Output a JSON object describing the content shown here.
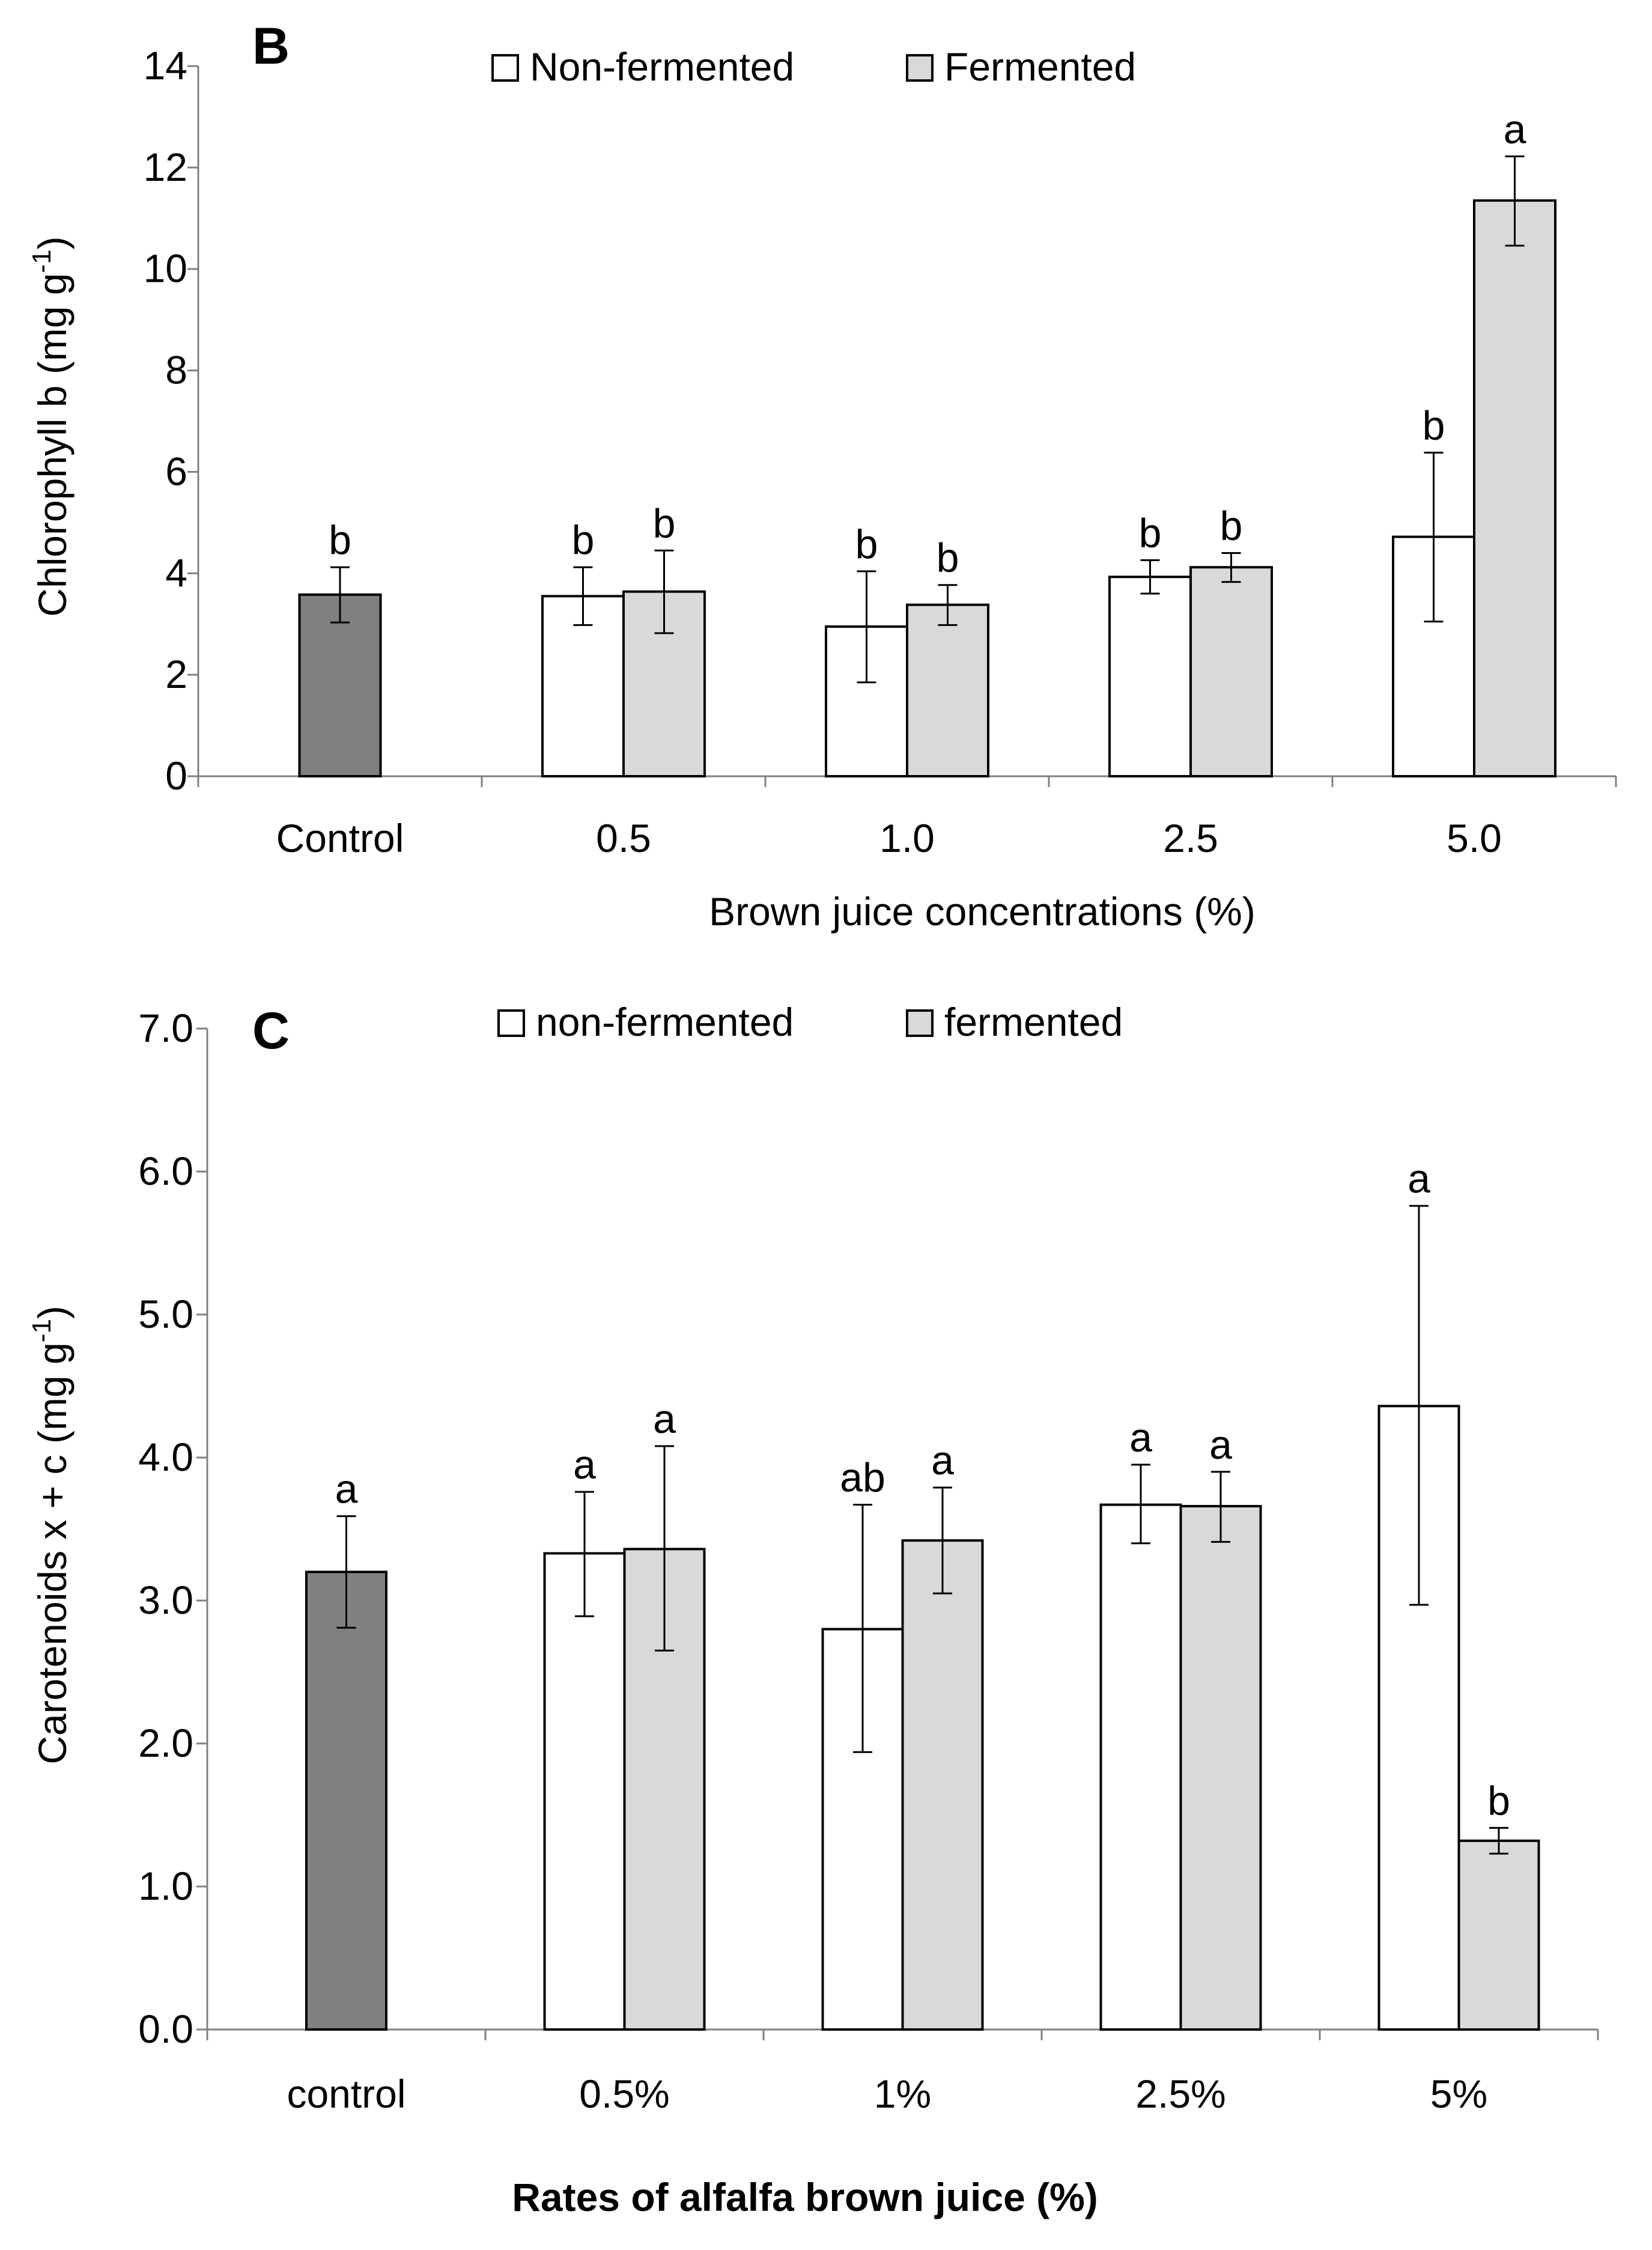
{
  "chart_data": [
    {
      "type": "bar",
      "panel_label": "B",
      "categories": [
        "Control",
        "0.5",
        "1.0",
        "2.5",
        "5.0"
      ],
      "xlabel": "Brown juice concentrations (%)",
      "ylabel_main": "Chlorophyll b (mg g",
      "ylabel_sup": "-1",
      "ylabel_end": ")",
      "ylim": [
        0,
        14
      ],
      "yticks": [
        0,
        2,
        4,
        6,
        8,
        10,
        12,
        14
      ],
      "ytick_labels": [
        "0",
        "2",
        "4",
        "6",
        "8",
        "10",
        "12",
        "14"
      ],
      "legend": [
        "Non-fermented",
        "Fermented"
      ],
      "legend_position": "top-center",
      "control": {
        "value": 3.58,
        "err_low": 3.03,
        "err_high": 4.12,
        "sig": "b"
      },
      "series": [
        {
          "name": "Non-fermented",
          "values": [
            null,
            3.55,
            2.95,
            3.93,
            4.72
          ],
          "err_low": [
            null,
            2.98,
            1.85,
            3.6,
            3.05
          ],
          "err_high": [
            null,
            4.12,
            4.04,
            4.26,
            6.38
          ],
          "sig": [
            null,
            "b",
            "b",
            "b",
            "b"
          ]
        },
        {
          "name": "Fermented",
          "values": [
            null,
            3.64,
            3.38,
            4.12,
            11.35
          ],
          "err_low": [
            null,
            2.82,
            2.98,
            3.83,
            10.46
          ],
          "err_high": [
            null,
            4.45,
            3.77,
            4.4,
            12.22
          ],
          "sig": [
            null,
            "b",
            "b",
            "b",
            "a"
          ]
        }
      ],
      "colors": {
        "control": "#808080",
        "non_fermented": "#ffffff",
        "fermented": "#d9d9d9",
        "stroke": "#000000"
      }
    },
    {
      "type": "bar",
      "panel_label": "C",
      "categories": [
        "control",
        "0.5%",
        "1%",
        "2.5%",
        "5%"
      ],
      "xlabel": "Rates of alfalfa brown juice (%)",
      "ylabel_main": "Carotenoids x + c (mg g",
      "ylabel_sup": "-1",
      "ylabel_end": ")",
      "ylim": [
        0,
        7
      ],
      "yticks": [
        0,
        1,
        2,
        3,
        4,
        5,
        6,
        7
      ],
      "ytick_labels": [
        "0.0",
        "1.0",
        "2.0",
        "3.0",
        "4.0",
        "5.0",
        "6.0",
        "7.0"
      ],
      "legend": [
        "non-fermented",
        "fermented"
      ],
      "legend_position": "top-center",
      "control": {
        "value": 3.2,
        "err_low": 2.81,
        "err_high": 3.59,
        "sig": "a"
      },
      "series": [
        {
          "name": "non-fermented",
          "values": [
            null,
            3.33,
            2.8,
            3.67,
            4.36
          ],
          "err_low": [
            null,
            2.89,
            1.94,
            3.4,
            2.97
          ],
          "err_high": [
            null,
            3.76,
            3.67,
            3.95,
            5.76
          ],
          "sig": [
            null,
            "a",
            "ab",
            "a",
            "a"
          ]
        },
        {
          "name": "fermented",
          "values": [
            null,
            3.36,
            3.42,
            3.66,
            1.32
          ],
          "err_low": [
            null,
            2.65,
            3.05,
            3.41,
            1.23
          ],
          "err_high": [
            null,
            4.08,
            3.79,
            3.9,
            1.41
          ],
          "sig": [
            null,
            "a",
            "a",
            "a",
            "b"
          ]
        }
      ],
      "colors": {
        "control": "#808080",
        "non_fermented": "#ffffff",
        "fermented": "#d9d9d9",
        "stroke": "#000000"
      }
    }
  ]
}
